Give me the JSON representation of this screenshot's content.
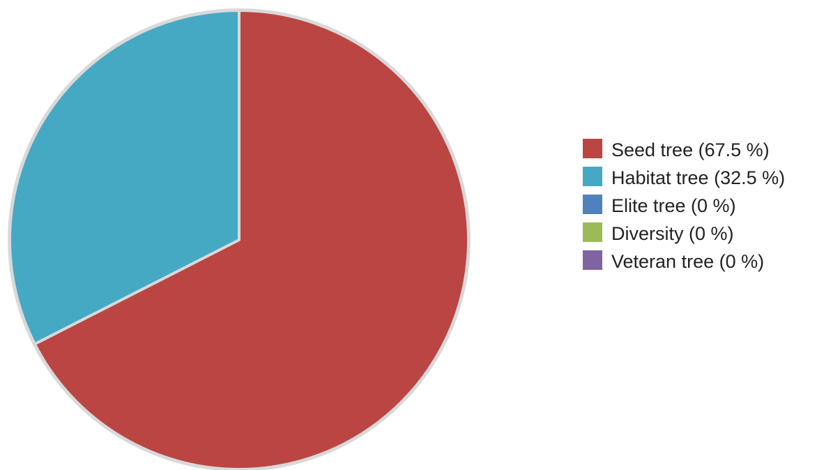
{
  "chart_data": {
    "type": "pie",
    "slices": [
      {
        "label": "Seed tree (67.5 %)",
        "value": 67.5,
        "color": "#BB4542"
      },
      {
        "label": "Habitat tree (32.5 %)",
        "value": 32.5,
        "color": "#45A9C4"
      },
      {
        "label": "Elite tree (0 %)",
        "value": 0,
        "color": "#4F81BD"
      },
      {
        "label": "Diversity (0 %)",
        "value": 0,
        "color": "#9BBB59"
      },
      {
        "label": "Veteran tree (0 %)",
        "value": 0,
        "color": "#8064A2"
      }
    ],
    "legend_position": "right",
    "start_angle": "top",
    "direction": "clockwise"
  }
}
